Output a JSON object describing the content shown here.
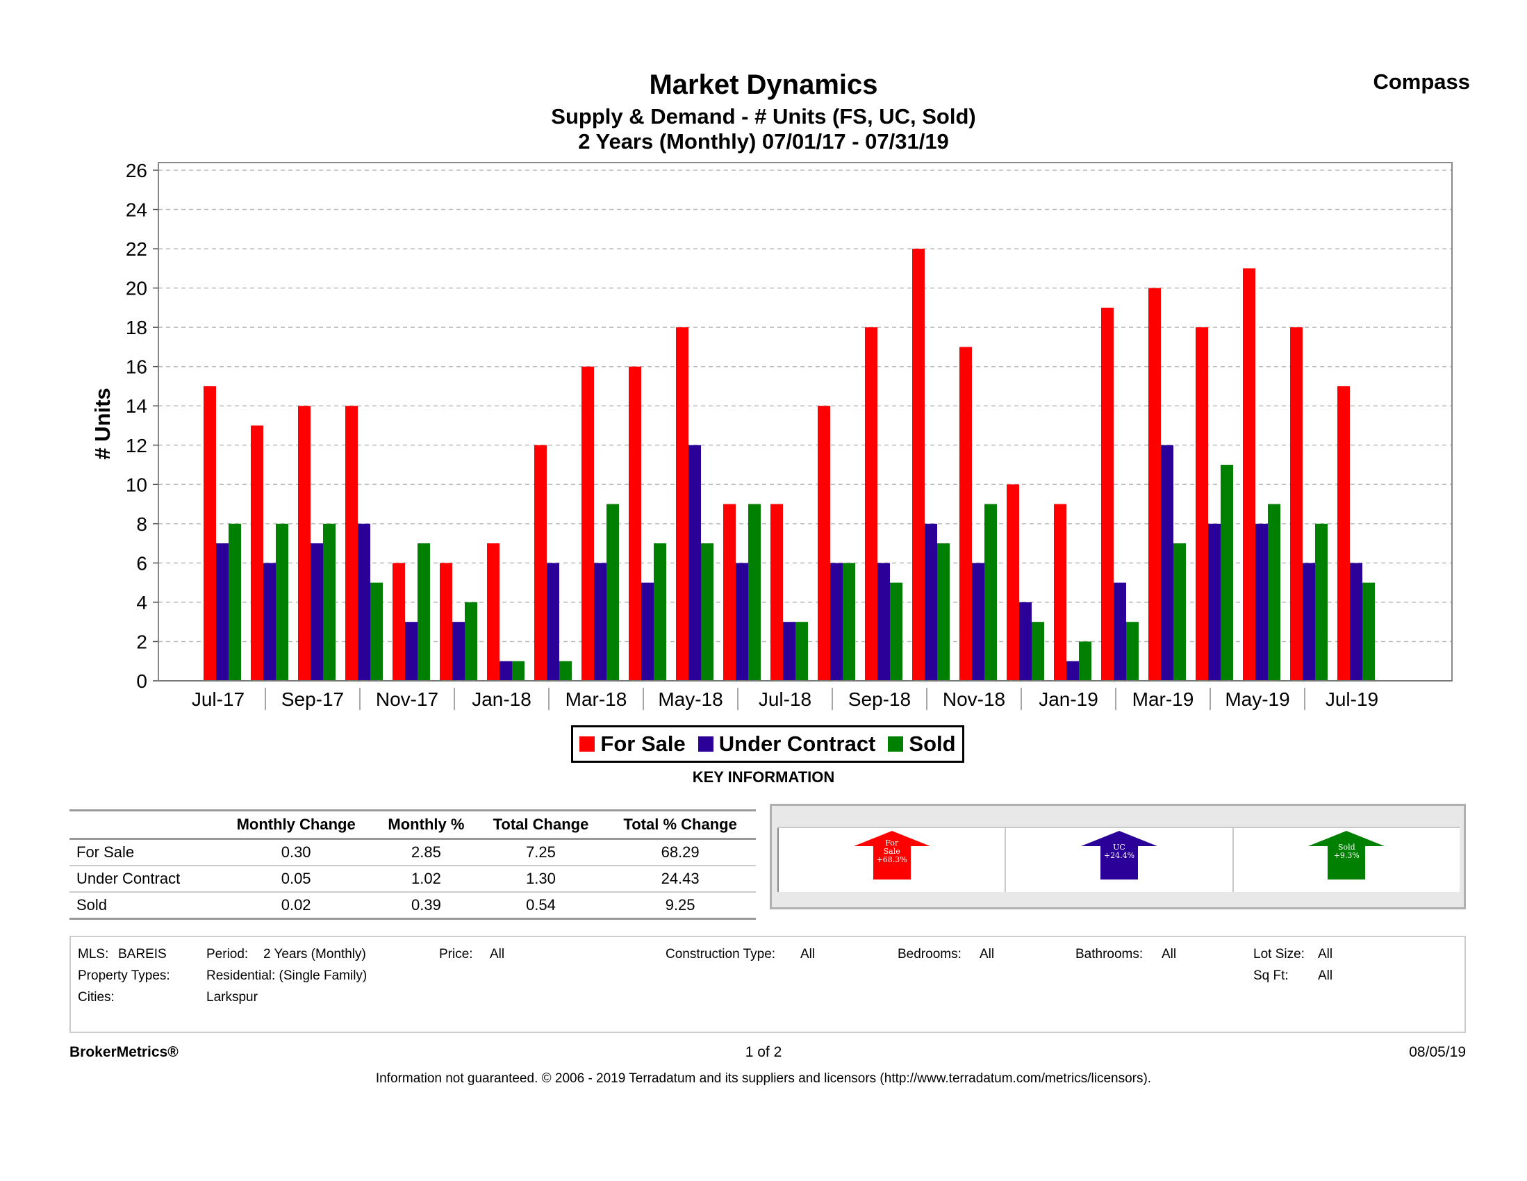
{
  "header": {
    "title": "Market Dynamics",
    "subtitle1": "Supply & Demand - # Units (FS, UC, Sold)",
    "subtitle2": "2 Years (Monthly) 07/01/17 - 07/31/19",
    "brand": "Compass"
  },
  "chart_data": {
    "type": "bar",
    "ylabel": "# Units",
    "ylim": [
      0,
      26
    ],
    "yticks": [
      0,
      2,
      4,
      6,
      8,
      10,
      12,
      14,
      16,
      18,
      20,
      22,
      24,
      26
    ],
    "categories": [
      "Jul-17",
      "Aug-17",
      "Sep-17",
      "Oct-17",
      "Nov-17",
      "Dec-17",
      "Jan-18",
      "Feb-18",
      "Mar-18",
      "Apr-18",
      "May-18",
      "Jun-18",
      "Jul-18",
      "Aug-18",
      "Sep-18",
      "Oct-18",
      "Nov-18",
      "Dec-18",
      "Jan-19",
      "Feb-19",
      "Mar-19",
      "Apr-19",
      "May-19",
      "Jun-19",
      "Jul-19"
    ],
    "tick_labels": [
      "Jul-17",
      "Sep-17",
      "Nov-17",
      "Jan-18",
      "Mar-18",
      "May-18",
      "Jul-18",
      "Sep-18",
      "Nov-18",
      "Jan-19",
      "Mar-19",
      "May-19",
      "Jul-19"
    ],
    "series": [
      {
        "name": "For Sale",
        "color": "#ff0000",
        "values": [
          15,
          13,
          14,
          14,
          6,
          6,
          7,
          12,
          16,
          16,
          18,
          9,
          9,
          14,
          18,
          22,
          17,
          10,
          9,
          19,
          20,
          18,
          21,
          18,
          15
        ]
      },
      {
        "name": "Under Contract",
        "color": "#2a0099",
        "values": [
          7,
          6,
          7,
          8,
          3,
          3,
          1,
          6,
          6,
          5,
          12,
          6,
          3,
          6,
          6,
          8,
          6,
          4,
          1,
          5,
          12,
          8,
          8,
          6,
          6
        ]
      },
      {
        "name": "Sold",
        "color": "#008000",
        "values": [
          8,
          8,
          8,
          5,
          7,
          4,
          1,
          1,
          9,
          7,
          7,
          9,
          3,
          6,
          5,
          7,
          9,
          3,
          2,
          3,
          7,
          11,
          9,
          8,
          5
        ]
      }
    ],
    "grid": true,
    "legend": "bottom-center"
  },
  "legend": {
    "items": [
      {
        "label": "For Sale",
        "color": "#ff0000"
      },
      {
        "label": "Under Contract",
        "color": "#2a0099"
      },
      {
        "label": "Sold",
        "color": "#008000"
      }
    ]
  },
  "key_info": {
    "title": "KEY INFORMATION",
    "headers": [
      "",
      "Monthly Change",
      "Monthly %",
      "Total Change",
      "Total % Change"
    ],
    "rows": [
      {
        "label": "For Sale",
        "monthly_change": "0.30",
        "monthly_pct": "2.85",
        "total_change": "7.25",
        "total_pct": "68.29"
      },
      {
        "label": "Under Contract",
        "monthly_change": "0.05",
        "monthly_pct": "1.02",
        "total_change": "1.30",
        "total_pct": "24.43"
      },
      {
        "label": "Sold",
        "monthly_change": "0.02",
        "monthly_pct": "0.39",
        "total_change": "0.54",
        "total_pct": "9.25"
      }
    ],
    "arrows": [
      {
        "line1": "For",
        "line2": "Sale",
        "line3": "+68.3%",
        "color": "#ff0000"
      },
      {
        "line1": "UC",
        "line2": "+24.4%",
        "line3": "",
        "color": "#2a0099"
      },
      {
        "line1": "Sold",
        "line2": "+9.3%",
        "line3": "",
        "color": "#008000"
      }
    ]
  },
  "filters": {
    "mls_label": "MLS:",
    "mls_value": "BAREIS",
    "period_label": "Period:",
    "period_value": "2 Years (Monthly)",
    "price_label": "Price:",
    "price_value": "All",
    "construction_label": "Construction Type:",
    "construction_value": "All",
    "bedrooms_label": "Bedrooms:",
    "bedrooms_value": "All",
    "bathrooms_label": "Bathrooms:",
    "bathrooms_value": "All",
    "lotsize_label": "Lot Size:",
    "lotsize_value": "All",
    "proptypes_label": "Property Types:",
    "proptypes_value": "Residential: (Single Family)",
    "sqft_label": "Sq Ft:",
    "sqft_value": "All",
    "cities_label": "Cities:",
    "cities_value": "Larkspur"
  },
  "footer": {
    "left": "BrokerMetrics®",
    "page": "1 of 2",
    "date": "08/05/19",
    "disclaimer": "Information not guaranteed.  © 2006 - 2019 Terradatum and its suppliers and licensors (http://www.terradatum.com/metrics/licensors)."
  }
}
